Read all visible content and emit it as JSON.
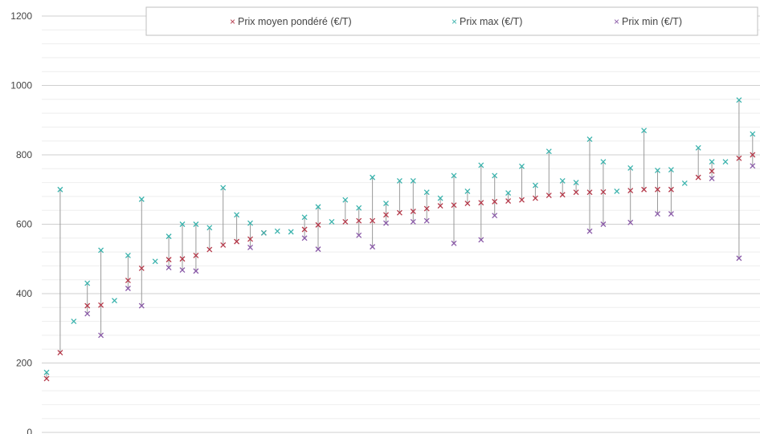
{
  "chart_data": {
    "type": "scatter",
    "ylim": [
      0,
      1200
    ],
    "yticks": [
      0,
      200,
      400,
      600,
      800,
      1000,
      1200
    ],
    "grid": true,
    "legend_position": "top",
    "x": [
      1,
      2,
      3,
      4,
      5,
      6,
      7,
      8,
      9,
      10,
      11,
      12,
      13,
      14,
      15,
      16,
      17,
      18,
      19,
      20,
      21,
      22,
      23,
      24,
      25,
      26,
      27,
      28,
      29,
      30,
      31,
      32,
      33,
      34,
      35,
      36,
      37,
      38,
      39,
      40,
      41,
      42,
      43,
      44,
      45,
      46,
      47,
      48,
      49,
      50,
      51,
      52,
      53
    ],
    "series": [
      {
        "name": "Prix moyen pondéré (€/T)",
        "color": "#b5394a",
        "marker": "x",
        "values": [
          155,
          230,
          null,
          365,
          367,
          null,
          438,
          473,
          null,
          498,
          500,
          510,
          527,
          540,
          550,
          557,
          575,
          null,
          null,
          585,
          598,
          null,
          607,
          610,
          610,
          627,
          633,
          637,
          645,
          653,
          655,
          660,
          662,
          665,
          667,
          670,
          675,
          683,
          685,
          692,
          692,
          693,
          null,
          697,
          700,
          700,
          700,
          null,
          735,
          753,
          null,
          790,
          800
        ]
      },
      {
        "name": "Prix max (€/T)",
        "color": "#3bb3ad",
        "marker": "x",
        "values": [
          173,
          700,
          320,
          430,
          525,
          380,
          510,
          672,
          493,
          565,
          600,
          600,
          590,
          705,
          627,
          603,
          575,
          580,
          578,
          620,
          650,
          607,
          670,
          647,
          735,
          660,
          725,
          725,
          692,
          675,
          740,
          695,
          770,
          740,
          690,
          767,
          712,
          810,
          725,
          720,
          845,
          780,
          695,
          762,
          870,
          755,
          757,
          718,
          820,
          780,
          780,
          958,
          860
        ]
      },
      {
        "name": "Prix min (€/T)",
        "color": "#8a5aa8",
        "marker": "x",
        "values": [
          null,
          null,
          null,
          342,
          280,
          null,
          415,
          365,
          null,
          475,
          468,
          465,
          null,
          null,
          null,
          533,
          null,
          null,
          null,
          560,
          528,
          null,
          null,
          568,
          535,
          603,
          null,
          607,
          610,
          null,
          545,
          null,
          555,
          625,
          null,
          null,
          null,
          null,
          null,
          null,
          580,
          600,
          null,
          605,
          null,
          630,
          630,
          null,
          null,
          732,
          null,
          502,
          768
        ]
      }
    ]
  }
}
